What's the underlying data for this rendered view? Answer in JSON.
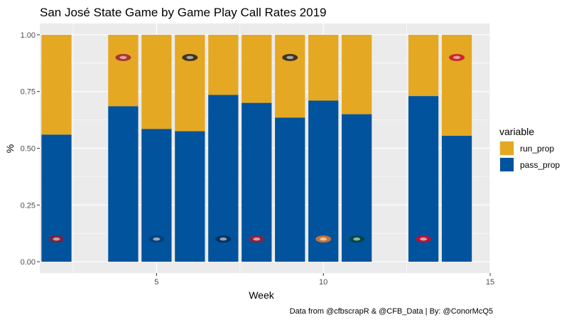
{
  "chart_data": {
    "type": "bar",
    "stacked": true,
    "title": "San José State Game by Game Play Call Rates 2019",
    "xlabel": "Week",
    "ylabel": "%",
    "caption": "Data from @cfbscrapR & @CFB_Data | By: @ConorMcQ5",
    "xlim": [
      1.5,
      15
    ],
    "ylim": [
      -0.05,
      1.05
    ],
    "x_ticks": [
      5,
      10,
      15
    ],
    "y_ticks": [
      0,
      0.25,
      0.5,
      0.75,
      1.0
    ],
    "y_tick_labels": [
      "0.00",
      "0.25",
      "0.50",
      "0.75",
      "1.00"
    ],
    "grid": true,
    "legend": {
      "title": "variable",
      "position": "right",
      "entries": [
        "run_prop",
        "pass_prop"
      ]
    },
    "x": [
      2,
      4,
      5,
      6,
      7,
      8,
      9,
      10,
      11,
      13,
      14
    ],
    "series": [
      {
        "name": "pass_prop",
        "color": "#00539C",
        "values": [
          0.56,
          0.685,
          0.585,
          0.575,
          0.735,
          0.7,
          0.635,
          0.71,
          0.65,
          0.73,
          0.555
        ]
      },
      {
        "name": "run_prop",
        "color": "#E5A823",
        "values": [
          0.44,
          0.315,
          0.415,
          0.425,
          0.265,
          0.3,
          0.365,
          0.29,
          0.35,
          0.27,
          0.445
        ]
      }
    ],
    "logos": [
      {
        "week": 2,
        "y": 0.1,
        "icon": "opponent-logo-icon",
        "color": "#8c1d2e"
      },
      {
        "week": 4,
        "y": 0.9,
        "icon": "opponent-logo-icon",
        "color": "#9d2235"
      },
      {
        "week": 5,
        "y": 0.1,
        "icon": "opponent-logo-icon",
        "color": "#0b3d73"
      },
      {
        "week": 6,
        "y": 0.9,
        "icon": "opponent-logo-icon",
        "color": "#222222"
      },
      {
        "week": 7,
        "y": 0.1,
        "icon": "opponent-logo-icon",
        "color": "#0b2b55"
      },
      {
        "week": 8,
        "y": 0.1,
        "icon": "opponent-logo-icon",
        "color": "#a6192e"
      },
      {
        "week": 9,
        "y": 0.9,
        "icon": "opponent-logo-icon",
        "color": "#222222"
      },
      {
        "week": 10,
        "y": 0.1,
        "icon": "opponent-logo-icon",
        "color": "#e87722"
      },
      {
        "week": 11,
        "y": 0.1,
        "icon": "opponent-logo-icon",
        "color": "#024731"
      },
      {
        "week": 13,
        "y": 0.1,
        "icon": "opponent-logo-icon",
        "color": "#cf0a2c"
      },
      {
        "week": 14,
        "y": 0.9,
        "icon": "opponent-logo-icon",
        "color": "#c41230"
      }
    ]
  }
}
